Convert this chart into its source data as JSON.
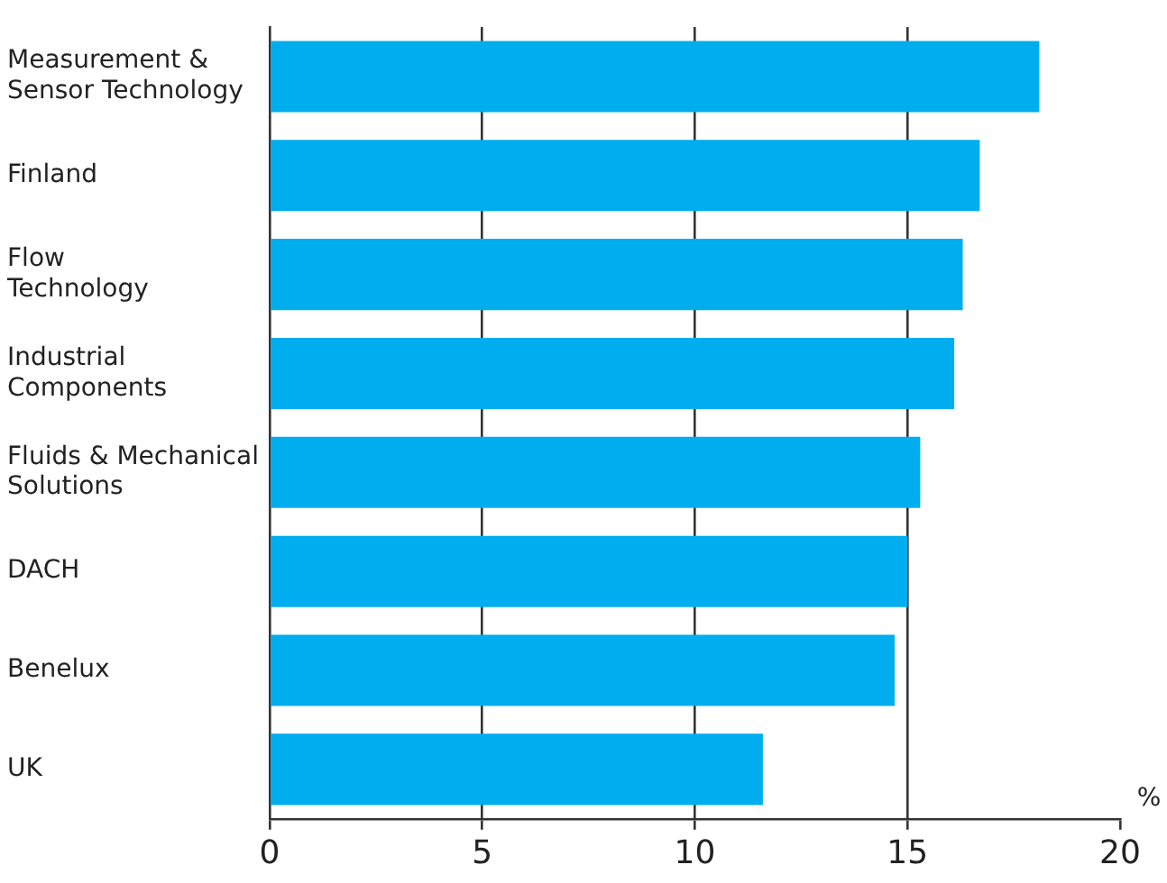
{
  "chart_data": {
    "type": "bar",
    "orientation": "horizontal",
    "xlabel": "%",
    "categories": [
      "Measurement &\nSensor Technology",
      "Finland",
      "Flow\nTechnology",
      "Industrial\nComponents",
      "Fluids & Mechanical\nSolutions",
      "DACH",
      "Benelux",
      "UK"
    ],
    "values": [
      18.1,
      16.7,
      16.3,
      16.1,
      15.3,
      15.0,
      14.7,
      11.6
    ],
    "color": "#00aeef",
    "xlim": [
      0,
      20
    ],
    "xticks": [
      0,
      5,
      10,
      15,
      20
    ],
    "grid": "x",
    "legend": false
  }
}
